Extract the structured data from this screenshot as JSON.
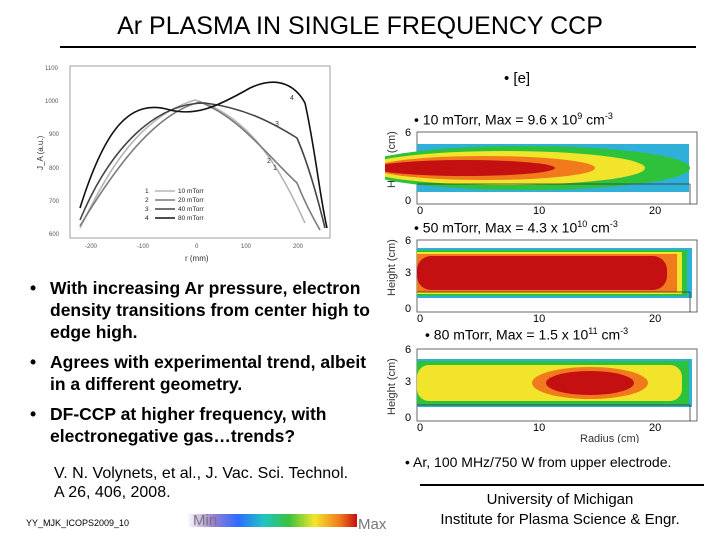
{
  "title": "Ar PLASMA IN SINGLE FREQUENCY CCP",
  "experimental_plot": {
    "y_axis_label": "J_A (a.u.)",
    "x_axis_label": "r (mm)",
    "y_ticks": [
      "1100",
      "1000",
      "900",
      "800",
      "700",
      "600"
    ],
    "x_ticks": [
      "-200",
      "-100",
      "0",
      "100",
      "200"
    ],
    "curve_labels": [
      "1",
      "2",
      "3",
      "4"
    ],
    "legend": [
      {
        "num": "1",
        "label": "10 mTorr",
        "color": "#b5b5b5"
      },
      {
        "num": "2",
        "label": "20 mTorr",
        "color": "#7a7a7a"
      },
      {
        "num": "3",
        "label": "40 mTorr",
        "color": "#444444"
      },
      {
        "num": "4",
        "label": "80 mTorr",
        "color": "#111111"
      }
    ]
  },
  "bullets": [
    "With increasing Ar pressure, electron density transitions from center high to edge high.",
    "Agrees with experimental trend, albeit in a different geometry.",
    "DF-CCP at higher frequency, with electronegative gas…trends?"
  ],
  "citation": "V. N. Volynets, et al., J. Vac. Sci. Technol. A 26, 406, 2008.",
  "footer_id": "YY_MJK_ICOPS2009_10",
  "scale": {
    "min": "Min",
    "max": "Max"
  },
  "contours": {
    "header": "[e]",
    "axis_label": "Height (cm)",
    "radius_label": "Radius (cm)",
    "y_ticks": [
      "6",
      "3",
      "0"
    ],
    "x_ticks": [
      "0",
      "10",
      "20"
    ],
    "panels": [
      {
        "label_prefix": "10 mTorr, Max = 9.6 x 10",
        "exponent": "9",
        "unit": " cm",
        "unit_exp": "-3"
      },
      {
        "label_prefix": "50 mTorr, Max = 4.3 x 10",
        "exponent": "10",
        "unit": " cm",
        "unit_exp": "-3"
      },
      {
        "label_prefix": "80 mTorr, Max = 1.5 x 10",
        "exponent": "11",
        "unit": " cm",
        "unit_exp": "-3"
      }
    ]
  },
  "conditions": "Ar, 100 MHz/750 W from upper electrode.",
  "affiliation": {
    "line1": "University of Michigan",
    "line2": "Institute for Plasma Science & Engr."
  }
}
